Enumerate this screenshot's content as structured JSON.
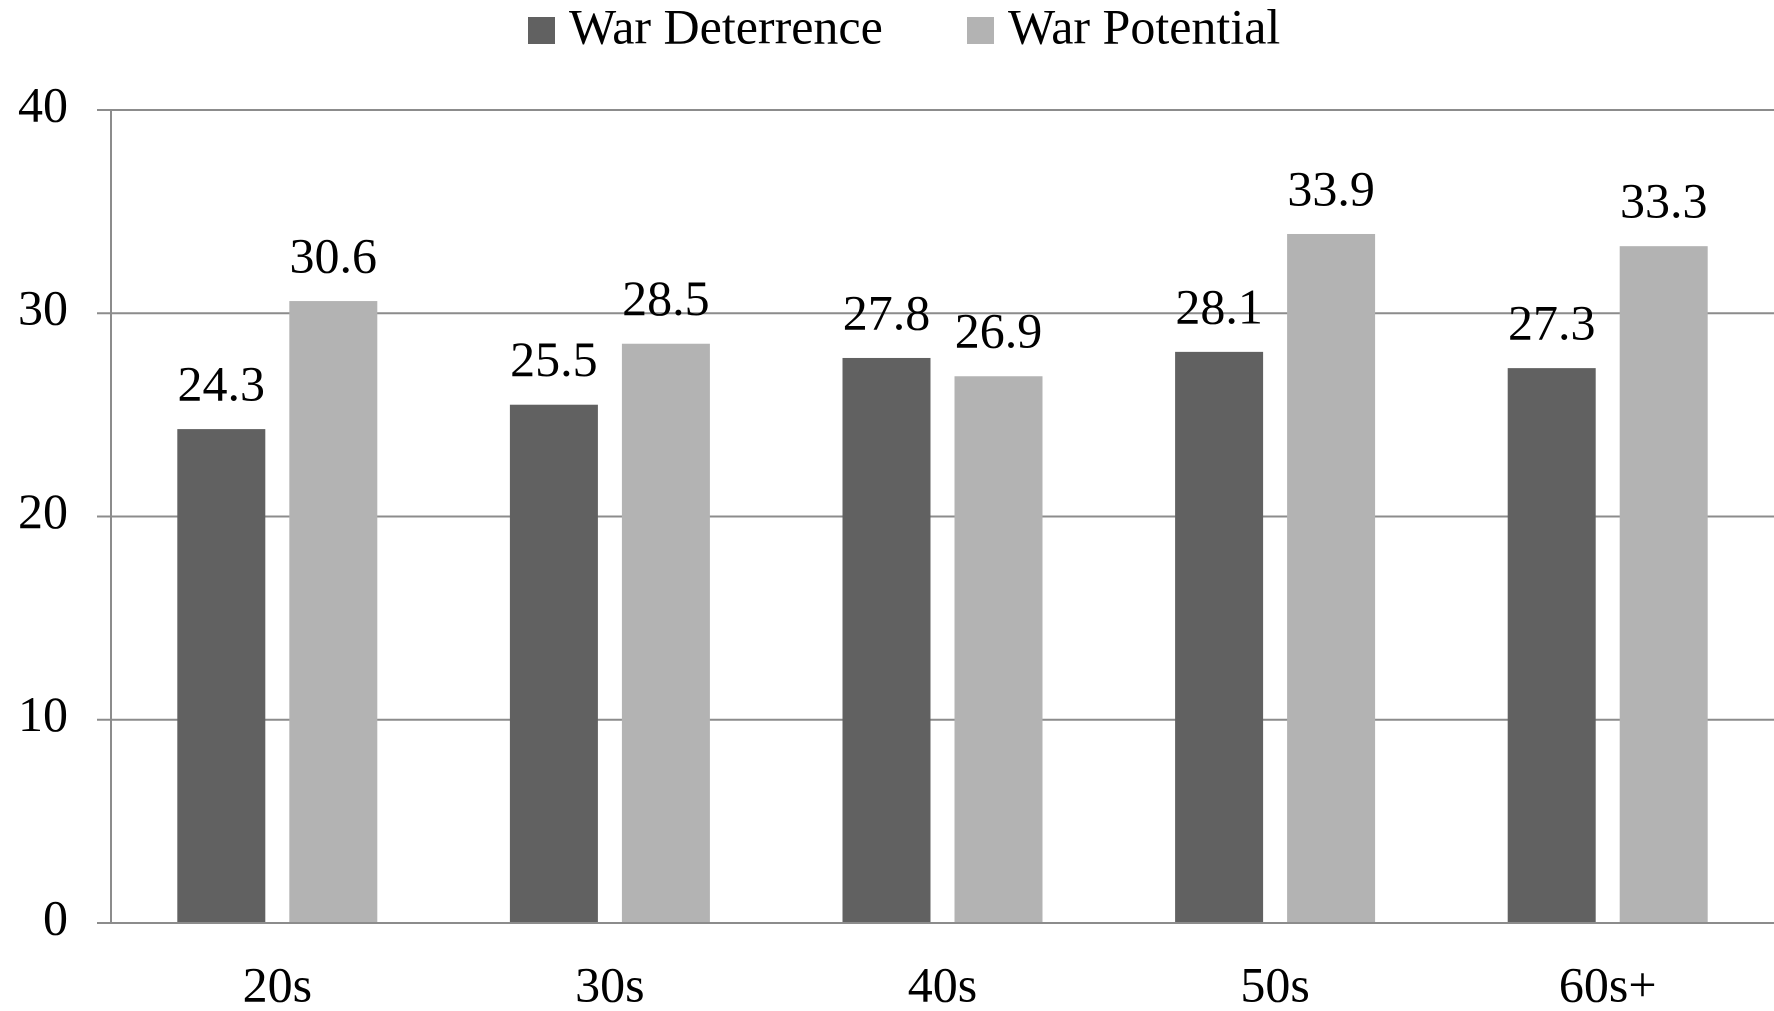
{
  "chart_data": {
    "type": "bar",
    "categories": [
      "20s",
      "30s",
      "40s",
      "50s",
      "60s+"
    ],
    "series": [
      {
        "name": "War Deterrence",
        "color": "#616161",
        "values": [
          24.3,
          25.5,
          27.8,
          28.1,
          27.3
        ]
      },
      {
        "name": "War Potential",
        "color": "#b3b3b3",
        "values": [
          30.6,
          28.5,
          26.9,
          33.9,
          33.3
        ]
      }
    ],
    "ylim": [
      0,
      40
    ],
    "yticks": [
      0,
      10,
      20,
      30,
      40
    ],
    "grid": true,
    "legend": "top"
  }
}
